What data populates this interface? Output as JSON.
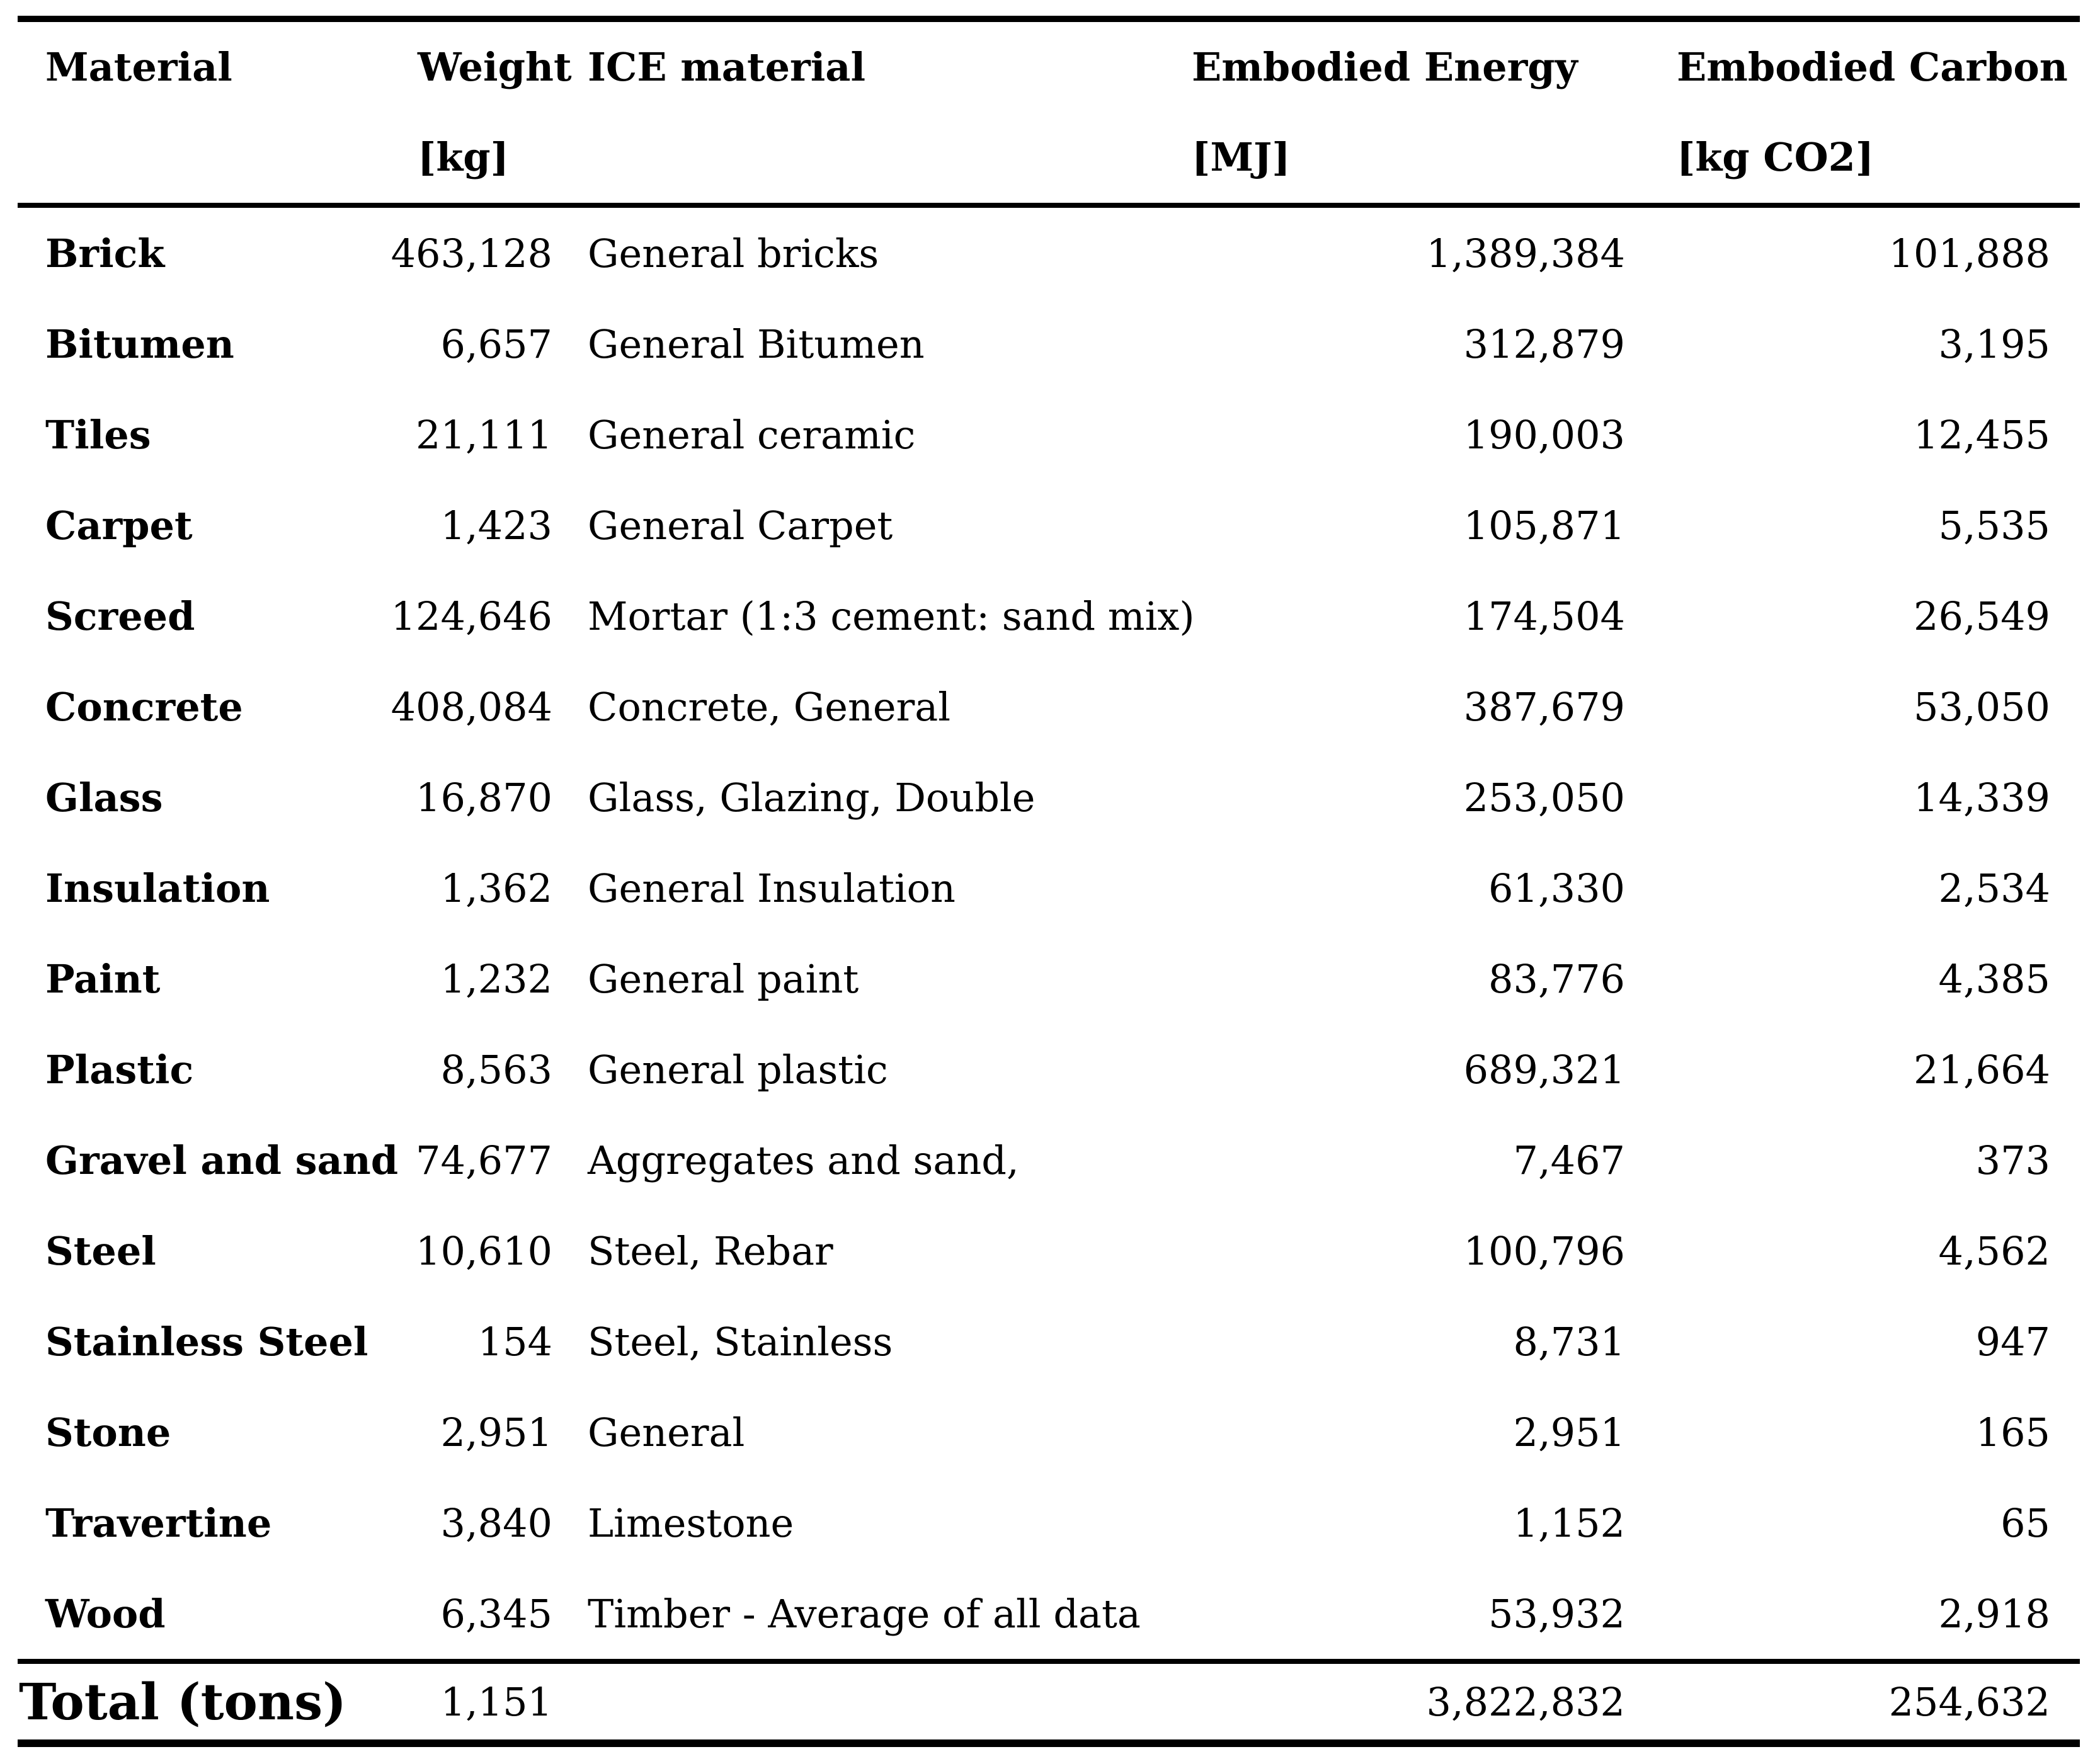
{
  "colors": {
    "text": "#000000",
    "background": "#ffffff",
    "rule": "#000000"
  },
  "table": {
    "headers": [
      {
        "label": "Material",
        "unit": ""
      },
      {
        "label": "Weight",
        "unit": "[kg]"
      },
      {
        "label": "ICE material",
        "unit": ""
      },
      {
        "label": "Embodied Energy",
        "unit": "[MJ]"
      },
      {
        "label": "Embodied Carbon",
        "unit": "[kg CO2]"
      }
    ],
    "rows": [
      {
        "material": "Brick",
        "weight_kg": "463,128",
        "ice_material": "General bricks",
        "embodied_energy_mj": "1,389,384",
        "embodied_carbon_kg_co2": "101,888"
      },
      {
        "material": "Bitumen",
        "weight_kg": "6,657",
        "ice_material": "General Bitumen",
        "embodied_energy_mj": "312,879",
        "embodied_carbon_kg_co2": "3,195"
      },
      {
        "material": "Tiles",
        "weight_kg": "21,111",
        "ice_material": "General ceramic",
        "embodied_energy_mj": "190,003",
        "embodied_carbon_kg_co2": "12,455"
      },
      {
        "material": "Carpet",
        "weight_kg": "1,423",
        "ice_material": "General Carpet",
        "embodied_energy_mj": "105,871",
        "embodied_carbon_kg_co2": "5,535"
      },
      {
        "material": "Screed",
        "weight_kg": "124,646",
        "ice_material": "Mortar (1:3 cement: sand mix)",
        "embodied_energy_mj": "174,504",
        "embodied_carbon_kg_co2": "26,549"
      },
      {
        "material": "Concrete",
        "weight_kg": "408,084",
        "ice_material": "Concrete, General",
        "embodied_energy_mj": "387,679",
        "embodied_carbon_kg_co2": "53,050"
      },
      {
        "material": "Glass",
        "weight_kg": "16,870",
        "ice_material": "Glass, Glazing, Double",
        "embodied_energy_mj": "253,050",
        "embodied_carbon_kg_co2": "14,339"
      },
      {
        "material": "Insulation",
        "weight_kg": "1,362",
        "ice_material": "General Insulation",
        "embodied_energy_mj": "61,330",
        "embodied_carbon_kg_co2": "2,534"
      },
      {
        "material": "Paint",
        "weight_kg": "1,232",
        "ice_material": "General paint",
        "embodied_energy_mj": "83,776",
        "embodied_carbon_kg_co2": "4,385"
      },
      {
        "material": "Plastic",
        "weight_kg": "8,563",
        "ice_material": "General plastic",
        "embodied_energy_mj": "689,321",
        "embodied_carbon_kg_co2": "21,664"
      },
      {
        "material": "Gravel and sand",
        "weight_kg": "74,677",
        "ice_material": "Aggregates and sand,",
        "embodied_energy_mj": "7,467",
        "embodied_carbon_kg_co2": "373"
      },
      {
        "material": "Steel",
        "weight_kg": "10,610",
        "ice_material": "Steel, Rebar",
        "embodied_energy_mj": "100,796",
        "embodied_carbon_kg_co2": "4,562"
      },
      {
        "material": "Stainless Steel",
        "weight_kg": "154",
        "ice_material": "Steel, Stainless",
        "embodied_energy_mj": "8,731",
        "embodied_carbon_kg_co2": "947"
      },
      {
        "material": "Stone",
        "weight_kg": "2,951",
        "ice_material": "General",
        "embodied_energy_mj": "2,951",
        "embodied_carbon_kg_co2": "165"
      },
      {
        "material": "Travertine",
        "weight_kg": "3,840",
        "ice_material": "Limestone",
        "embodied_energy_mj": "1,152",
        "embodied_carbon_kg_co2": "65"
      },
      {
        "material": "Wood",
        "weight_kg": "6,345",
        "ice_material": "Timber - Average of all data",
        "embodied_energy_mj": "53,932",
        "embodied_carbon_kg_co2": "2,918"
      }
    ],
    "total": {
      "material": "Total (tons)",
      "weight_kg": "1,151",
      "ice_material": "",
      "embodied_energy_mj": "3,822,832",
      "embodied_carbon_kg_co2": "254,632"
    }
  }
}
